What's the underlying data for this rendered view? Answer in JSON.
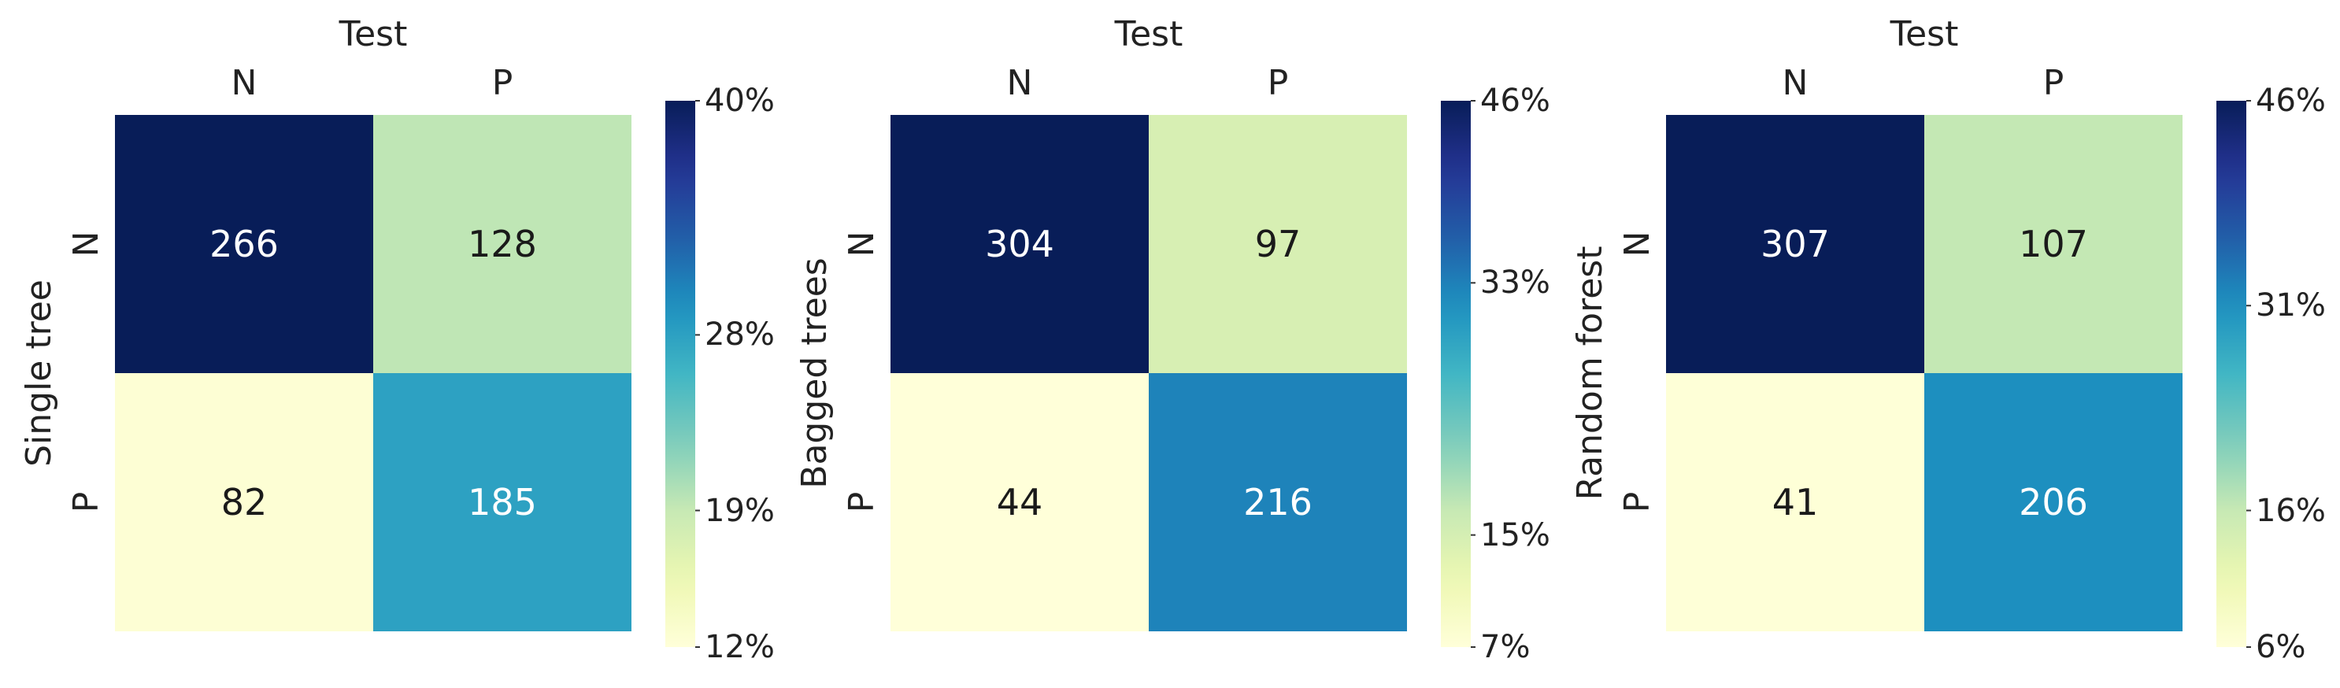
{
  "chart_data": [
    {
      "type": "heatmap",
      "xlabel": "Test",
      "ylabel": "Single tree",
      "x_categories": [
        "N",
        "P"
      ],
      "y_categories": [
        "N",
        "P"
      ],
      "values": [
        [
          266,
          128
        ],
        [
          82,
          185
        ]
      ],
      "colorbar": {
        "min": 12,
        "max": 40,
        "ticks": [
          "40%",
          "28%",
          "19%",
          "12%"
        ],
        "tick_values": [
          40,
          28,
          19,
          12
        ]
      },
      "colormap": "YlGnBu"
    },
    {
      "type": "heatmap",
      "xlabel": "Test",
      "ylabel": "Bagged trees",
      "x_categories": [
        "N",
        "P"
      ],
      "y_categories": [
        "N",
        "P"
      ],
      "values": [
        [
          304,
          97
        ],
        [
          44,
          216
        ]
      ],
      "colorbar": {
        "min": 7,
        "max": 46,
        "ticks": [
          "46%",
          "33%",
          "15%",
          "7%"
        ],
        "tick_values": [
          46,
          33,
          15,
          7
        ]
      },
      "colormap": "YlGnBu"
    },
    {
      "type": "heatmap",
      "xlabel": "Test",
      "ylabel": "Random forest",
      "x_categories": [
        "N",
        "P"
      ],
      "y_categories": [
        "N",
        "P"
      ],
      "values": [
        [
          307,
          107
        ],
        [
          41,
          206
        ]
      ],
      "colorbar": {
        "min": 6,
        "max": 46,
        "ticks": [
          "46%",
          "31%",
          "16%",
          "6%"
        ],
        "tick_values": [
          46,
          31,
          16,
          6
        ]
      },
      "colormap": "YlGnBu"
    }
  ]
}
